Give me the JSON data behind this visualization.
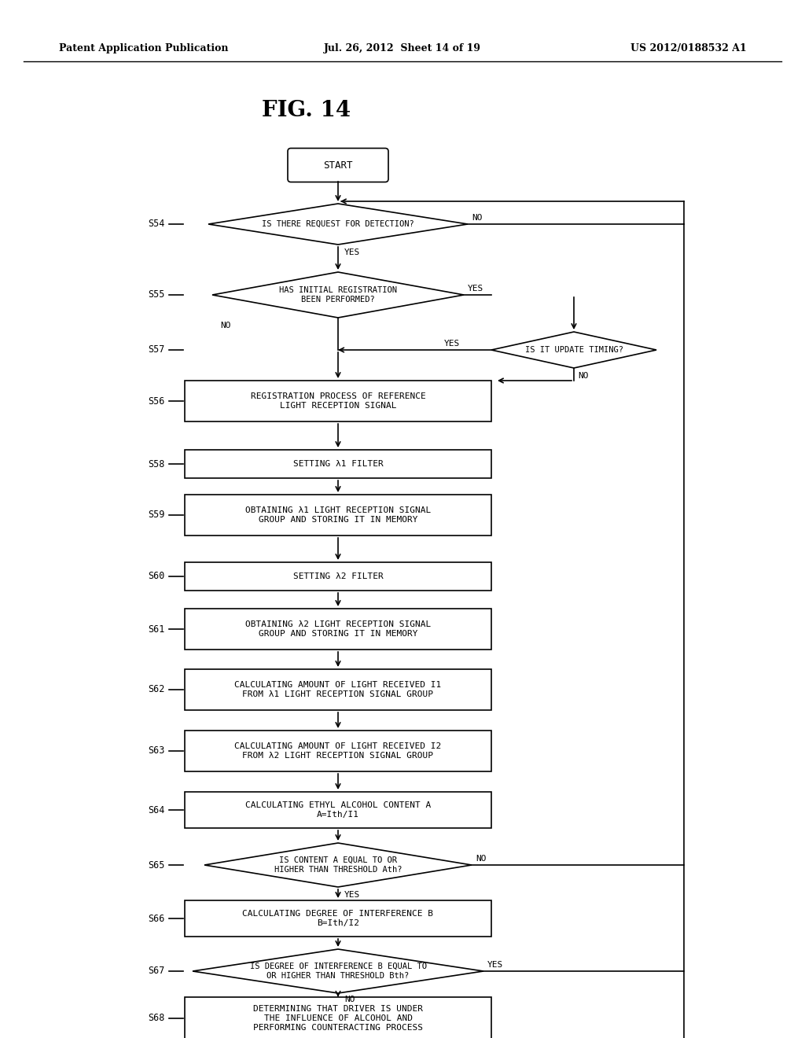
{
  "title": "FIG. 14",
  "header_left": "Patent Application Publication",
  "header_mid": "Jul. 26, 2012  Sheet 14 of 19",
  "header_right": "US 2012/0188532 A1",
  "bg_color": "#ffffff",
  "line_color": "#000000",
  "fig_w": 10.24,
  "fig_h": 13.2,
  "dpi": 100
}
